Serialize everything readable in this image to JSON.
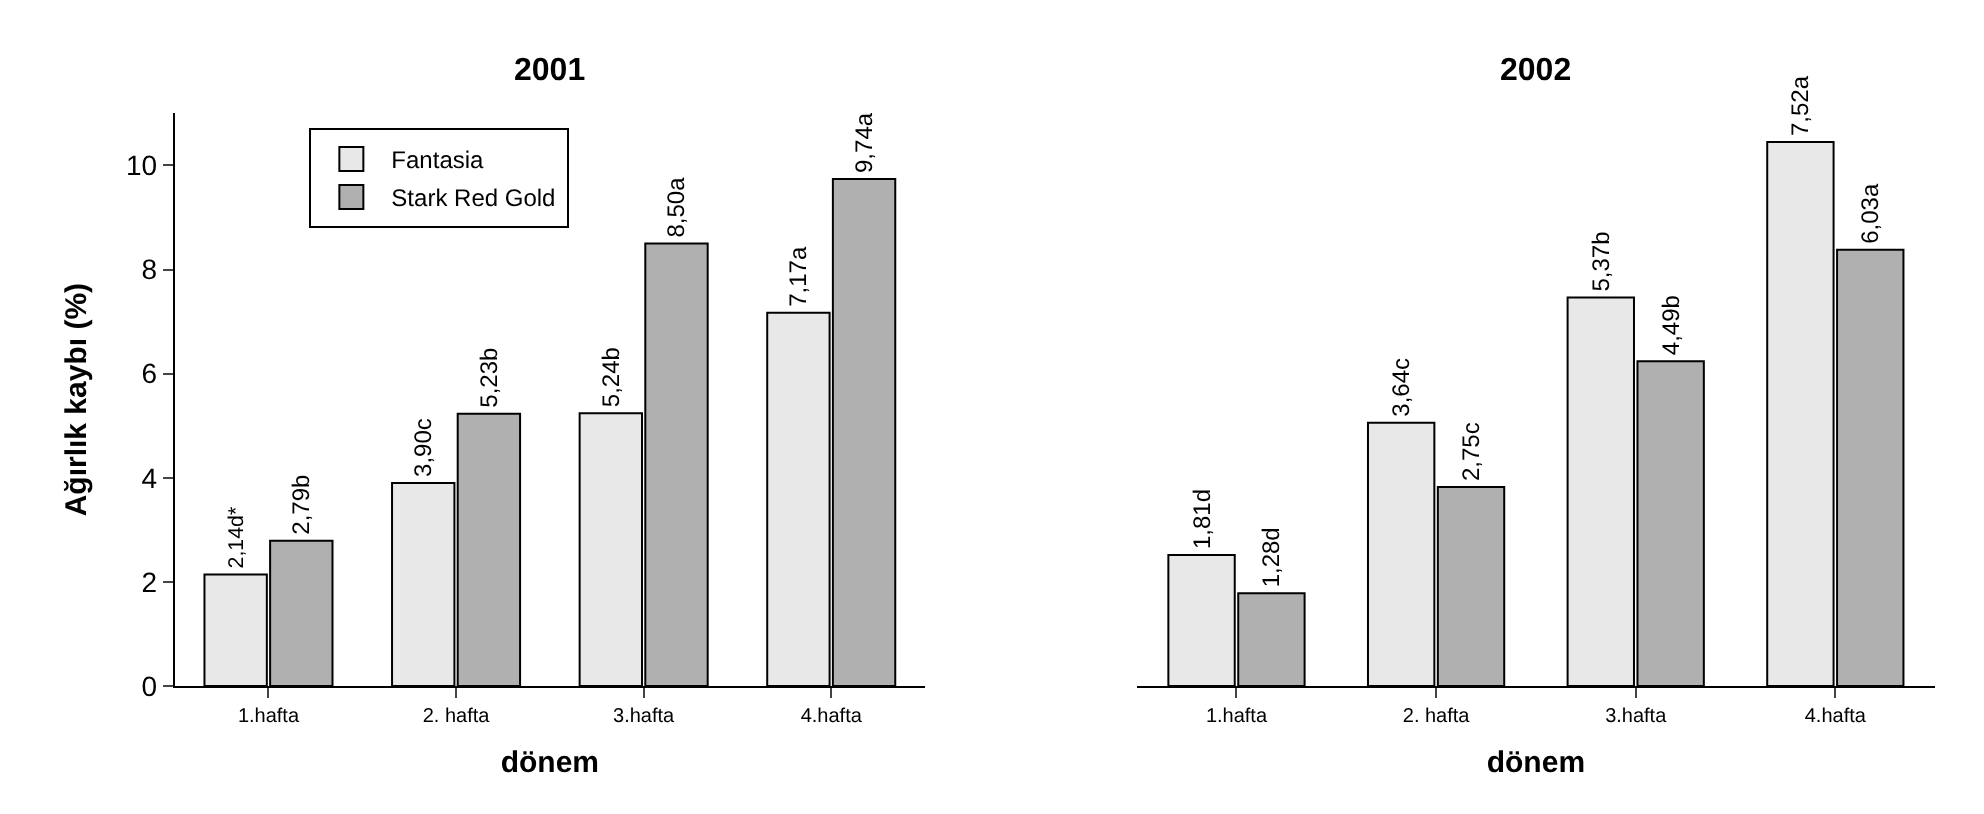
{
  "chart_data": [
    {
      "type": "bar",
      "title": "2001",
      "xlabel": "dönem",
      "ylabel": "Ağırlık kaybı (%)",
      "categories": [
        "1.hafta",
        "2. hafta",
        "3.hafta",
        "4.hafta"
      ],
      "series": [
        {
          "name": "Fantasia",
          "color": "#e8e8e8",
          "values": [
            2.14,
            3.9,
            5.24,
            7.17
          ],
          "value_labels": [
            "2,14d*",
            "3,90c",
            "5,24b",
            "7,17a"
          ]
        },
        {
          "name": "Stark Red Gold",
          "color": "#b0b0b0",
          "values": [
            2.79,
            5.23,
            8.5,
            9.74
          ],
          "value_labels": [
            "2,79b",
            "5,23b",
            "8,50a",
            "9,74a"
          ]
        }
      ],
      "ylim": [
        0,
        11
      ],
      "yticks": [
        0,
        2,
        4,
        6,
        8,
        10
      ],
      "legend": "top left"
    },
    {
      "type": "bar",
      "title": "2002",
      "xlabel": "dönem",
      "categories": [
        "1.hafta",
        "2. hafta",
        "3.hafta",
        "4.hafta"
      ],
      "series": [
        {
          "color": "#e8e8e8",
          "values": [
            1.81,
            3.64,
            5.37,
            7.52
          ],
          "value_labels": [
            "1,81d",
            "3,64c",
            "5,37b",
            "7,52a"
          ]
        },
        {
          "color": "#b0b0b0",
          "values": [
            1.28,
            2.75,
            4.49,
            6.03
          ],
          "value_labels": [
            "1,28d",
            "2,75c",
            "4,49b",
            "6,03a"
          ]
        }
      ],
      "tick_labels": "x"
    }
  ]
}
